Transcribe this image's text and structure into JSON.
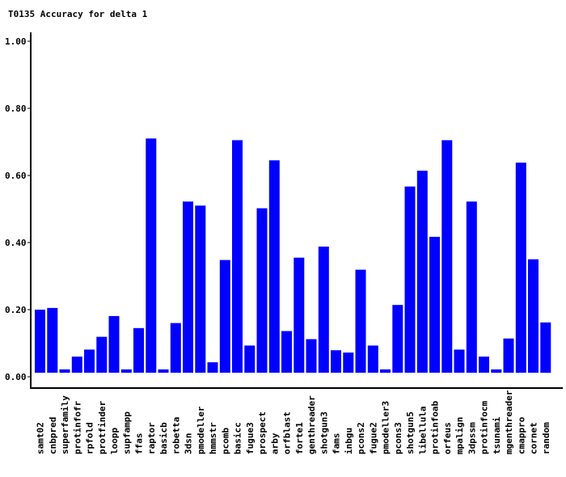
{
  "chart_data": {
    "type": "bar",
    "title": "T0135 Accuracy for delta 1",
    "xlabel": "",
    "ylabel": "",
    "ylim": [
      0,
      1
    ],
    "yticks": [
      "0.00",
      "0.20",
      "0.40",
      "0.60",
      "0.80",
      "1.00"
    ],
    "bar_color": "#0000ff",
    "categories": [
      "samt02",
      "cnbpred",
      "superfamily",
      "protinfofr",
      "rpfold",
      "protfinder",
      "loopp",
      "supfampp",
      "ffas",
      "raptor",
      "basicb",
      "robetta",
      "3dsn",
      "pmodeller",
      "hmmstr",
      "pcomb",
      "basicc",
      "fugue3",
      "prospect",
      "arby",
      "orfblast",
      "forte1",
      "genthreader",
      "shotgun3",
      "fams",
      "inbgu",
      "pcons2",
      "fugue2",
      "pmodeller3",
      "pcons3",
      "shotgun5",
      "libellula",
      "protinfoab",
      "orfeus",
      "mpalign",
      "3dpssm",
      "protinfocm",
      "tsunami",
      "mgenthreader",
      "cmappro",
      "cornet",
      "random"
    ],
    "values": [
      0.188,
      0.193,
      0.01,
      0.048,
      0.069,
      0.107,
      0.169,
      0.01,
      0.133,
      0.698,
      0.01,
      0.148,
      0.51,
      0.498,
      0.031,
      0.336,
      0.693,
      0.081,
      0.49,
      0.633,
      0.124,
      0.343,
      0.1,
      0.376,
      0.067,
      0.06,
      0.307,
      0.081,
      0.01,
      0.202,
      0.555,
      0.602,
      0.405,
      0.693,
      0.069,
      0.51,
      0.048,
      0.01,
      0.102,
      0.626,
      0.338,
      0.15
    ]
  }
}
